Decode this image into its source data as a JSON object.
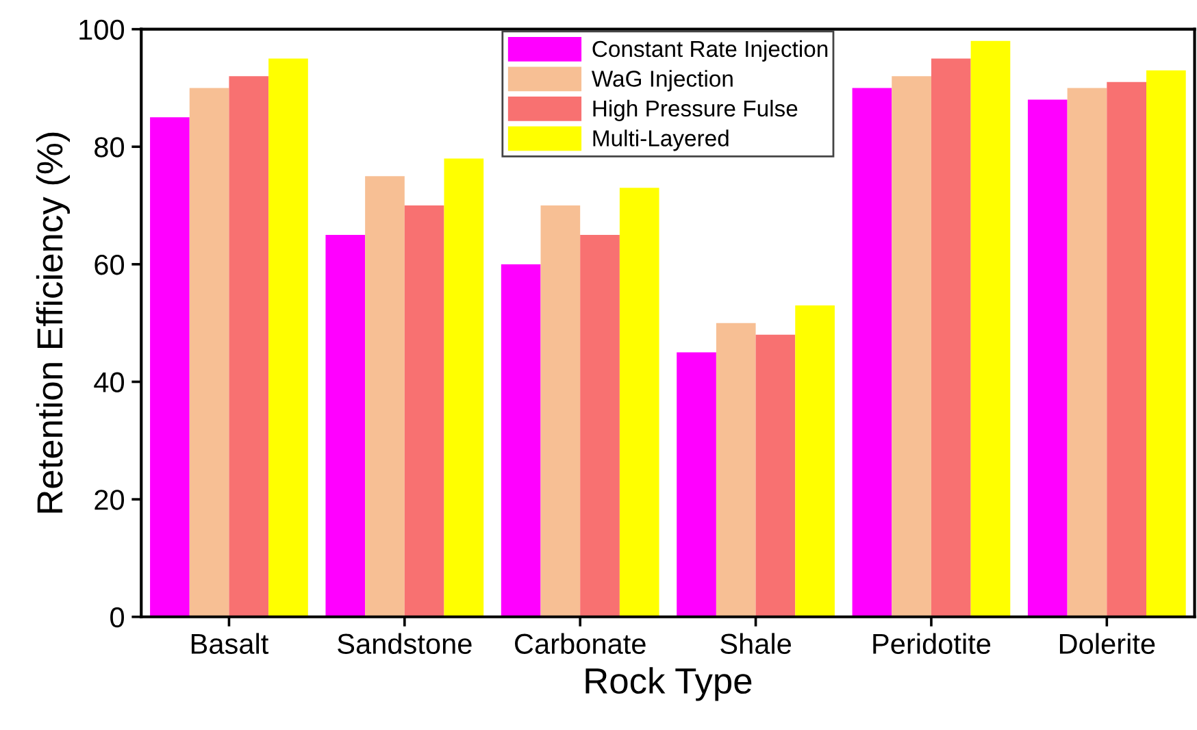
{
  "chart_data": {
    "type": "bar",
    "xlabel": "Rock Type",
    "ylabel": "Retention Efficiency (%)",
    "categories": [
      "Basalt",
      "Sandstone",
      "Carbonate",
      "Shale",
      "Peridotite",
      "Dolerite"
    ],
    "series": [
      {
        "name": "Constant Rate Injection",
        "color": "#ff00ff",
        "values": [
          85,
          65,
          60,
          45,
          90,
          88
        ]
      },
      {
        "name": "WaG Injection",
        "color": "#f7bf94",
        "values": [
          90,
          75,
          70,
          50,
          92,
          90
        ]
      },
      {
        "name": "High Pressure Fulse",
        "color": "#f87171",
        "values": [
          92,
          70,
          65,
          48,
          95,
          91
        ]
      },
      {
        "name": "Multi-Layered",
        "color": "#ffff00",
        "values": [
          95,
          78,
          73,
          53,
          98,
          93
        ]
      }
    ],
    "ylim": [
      0,
      100
    ],
    "yticks": [
      0,
      20,
      40,
      60,
      80,
      100
    ],
    "grid": false,
    "legend": "top"
  }
}
